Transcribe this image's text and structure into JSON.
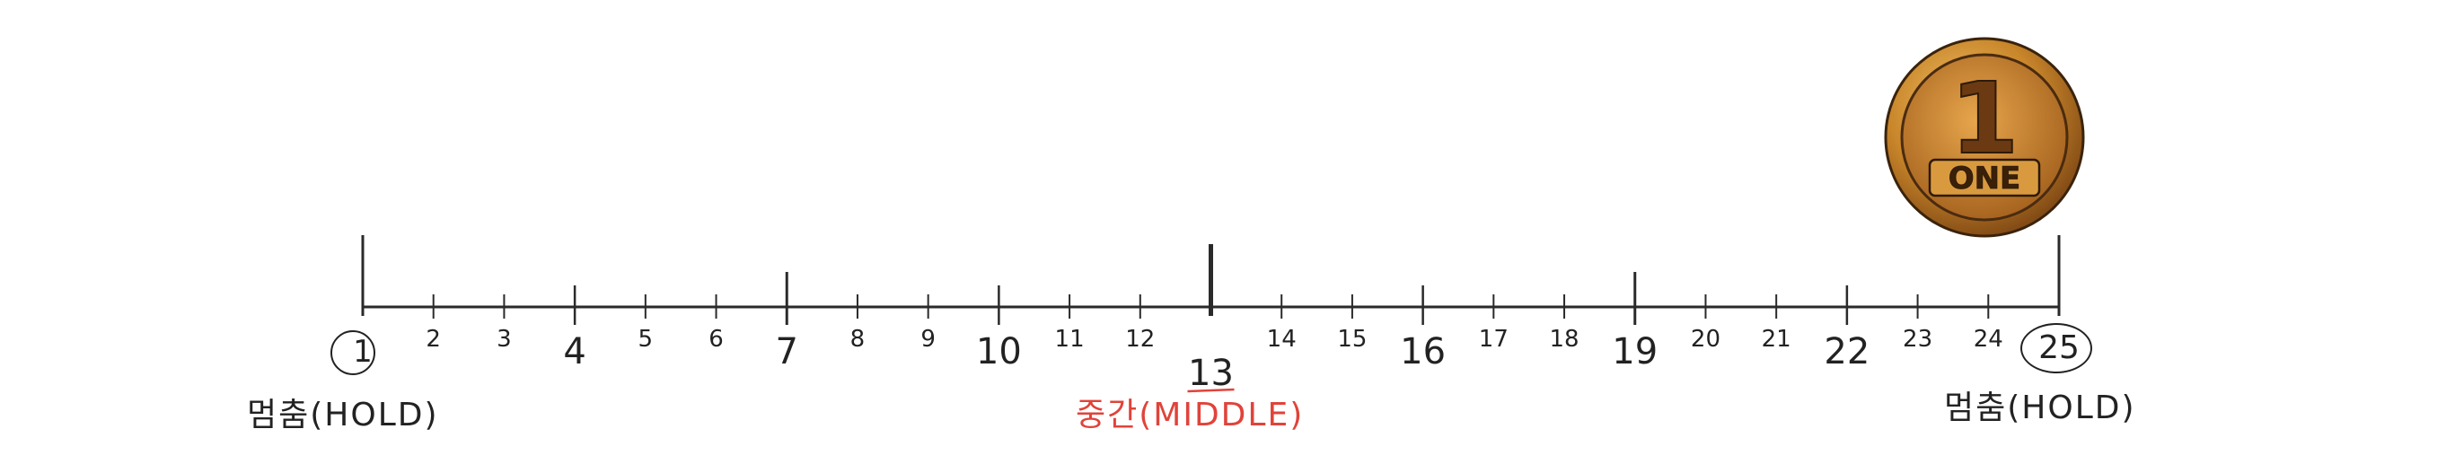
{
  "number_line": {
    "start_value": "1",
    "end_value": "25",
    "middle_value": "13",
    "ticks": [
      "1",
      "2",
      "3",
      "4",
      "5",
      "6",
      "7",
      "8",
      "9",
      "10",
      "11",
      "12",
      "13",
      "14",
      "15",
      "16",
      "17",
      "18",
      "19",
      "20",
      "21",
      "22",
      "23",
      "24",
      "25"
    ],
    "start_label": "멈춤(HOLD)",
    "middle_label": "중간(MIDDLE)",
    "end_label": "멈춤(HOLD)",
    "middle_color": "#e0433a",
    "line_color": "#2a2a2a"
  },
  "coin": {
    "number": "1",
    "text": "ONE",
    "icon": "gold-coin-icon",
    "color": "#c9862a"
  }
}
